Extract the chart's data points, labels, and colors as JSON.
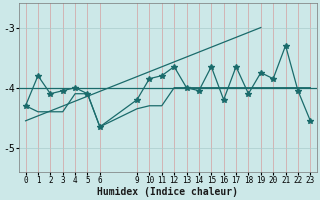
{
  "xlabel": "Humidex (Indice chaleur)",
  "bg_color": "#cce8e8",
  "grid_color": "#aacccc",
  "line_color": "#1a6b6b",
  "ylim": [
    -5.4,
    -2.6
  ],
  "xlim": [
    -0.5,
    23.5
  ],
  "yticks": [
    -5,
    -4,
    -3
  ],
  "xticks": [
    0,
    1,
    2,
    3,
    4,
    5,
    6,
    9,
    10,
    11,
    12,
    13,
    14,
    15,
    16,
    17,
    18,
    19,
    20,
    21,
    22,
    23
  ],
  "series1_x": [
    0,
    1,
    2,
    3,
    4,
    5,
    6,
    9,
    10,
    11,
    12,
    13,
    14,
    15,
    16,
    17,
    18,
    19,
    20,
    21,
    22,
    23
  ],
  "series1_y": [
    -4.3,
    -3.8,
    -4.1,
    -4.05,
    -4.0,
    -4.1,
    -4.65,
    -4.2,
    -3.85,
    -3.8,
    -3.65,
    -4.0,
    -4.05,
    -3.65,
    -4.2,
    -3.65,
    -4.1,
    -3.75,
    -3.85,
    -3.3,
    -4.05,
    -4.55
  ],
  "series2_x": [
    0,
    1,
    2,
    3,
    4,
    5,
    6,
    9,
    10,
    11,
    12,
    13,
    14,
    15,
    16,
    17,
    18,
    19,
    20,
    21,
    22,
    23
  ],
  "series2_y": [
    -4.3,
    -4.4,
    -4.4,
    -4.4,
    -4.1,
    -4.1,
    -4.65,
    -4.35,
    -4.3,
    -4.3,
    -4.0,
    -4.0,
    -4.0,
    -4.0,
    -4.0,
    -4.0,
    -4.0,
    -4.0,
    -4.0,
    -4.0,
    -4.0,
    -4.0
  ],
  "trend_x": [
    0,
    19
  ],
  "trend_y": [
    -4.55,
    -3.0
  ],
  "hline_y": -4.0,
  "marker": "*",
  "markersize": 4,
  "linewidth": 0.9
}
